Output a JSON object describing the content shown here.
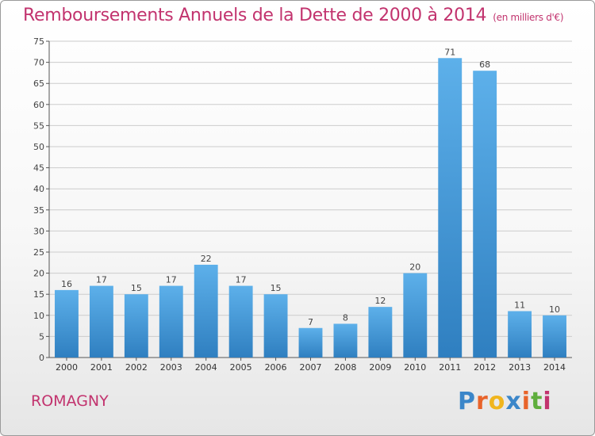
{
  "header": {
    "title": "Remboursements Annuels de la Dette de 2000 à 2014",
    "unit": "(en milliers d'€)"
  },
  "footer": {
    "town": "ROMAGNY",
    "logo": "Proxiti"
  },
  "colors": {
    "title": "#c2336e",
    "bar_top": "#5db0ea",
    "bar_bottom": "#2f7fc0",
    "grid": "#cccccc",
    "logo_letters": [
      "#3b86c9",
      "#e8632a",
      "#f0b51e",
      "#3b86c9",
      "#e8632a",
      "#5fae3d",
      "#c2336e"
    ]
  },
  "chart_data": {
    "type": "bar",
    "title": "Remboursements Annuels de la Dette de 2000 à 2014",
    "ylabel": "en milliers d'€",
    "xlabel": "",
    "categories": [
      "2000",
      "2001",
      "2002",
      "2003",
      "2004",
      "2005",
      "2006",
      "2007",
      "2008",
      "2009",
      "2010",
      "2011",
      "2012",
      "2013",
      "2014"
    ],
    "values": [
      16,
      17,
      15,
      17,
      22,
      17,
      15,
      7,
      8,
      12,
      20,
      71,
      68,
      11,
      10
    ],
    "ylim": [
      0,
      75
    ],
    "yticks": [
      0,
      5,
      10,
      15,
      20,
      25,
      30,
      35,
      40,
      45,
      50,
      55,
      60,
      65,
      70,
      75
    ],
    "grid": true,
    "legend": "none"
  }
}
